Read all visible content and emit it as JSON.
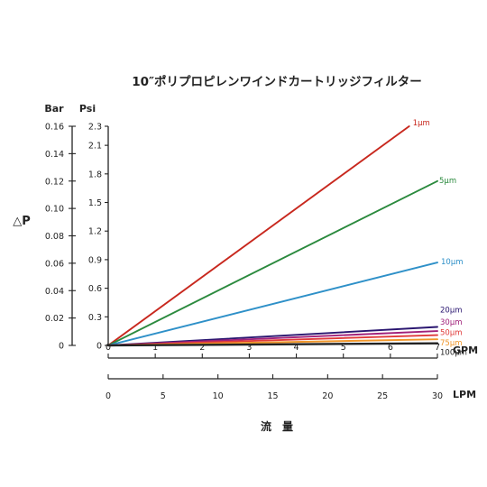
{
  "chart_data": {
    "type": "line",
    "title": "10″ポリプロピレンワインドカートリッジフィルター",
    "ylabel": "△P",
    "xlabel": "流　量",
    "y_axes": [
      {
        "unit": "Bar",
        "ticks": [
          0,
          0.02,
          0.04,
          0.06,
          0.08,
          0.1,
          0.12,
          0.14,
          0.16
        ],
        "labels": [
          "0",
          "0.02",
          "0.04",
          "0.06",
          "0.08",
          "0.10",
          "0.12",
          "0.14",
          "0.16"
        ],
        "ylim": [
          0,
          0.16
        ]
      },
      {
        "unit": "Psi",
        "ticks": [
          0,
          0.3,
          0.6,
          0.9,
          1.2,
          1.5,
          1.8,
          2.1,
          2.3
        ],
        "labels": [
          "0",
          "0.3",
          "0.6",
          "0.9",
          "1.2",
          "1.5",
          "1.8",
          "2.1",
          "2.3"
        ]
      }
    ],
    "x_axes": [
      {
        "unit": "GPM",
        "ticks": [
          0,
          1,
          2,
          3,
          4,
          5,
          6,
          7
        ],
        "labels": [
          "0",
          "1",
          "2",
          "3",
          "4",
          "5",
          "6",
          "7"
        ],
        "xlim": [
          0,
          7
        ]
      },
      {
        "unit": "LPM",
        "ticks": [
          0,
          5,
          10,
          15,
          20,
          25,
          30
        ],
        "labels": [
          "0",
          "5",
          "10",
          "15",
          "20",
          "25",
          "30"
        ],
        "xlim": [
          0,
          30
        ]
      }
    ],
    "series": [
      {
        "name": "1μm",
        "color": "#c8281e",
        "x": [
          0,
          6.4
        ],
        "y": [
          0,
          0.16
        ]
      },
      {
        "name": "5μm",
        "color": "#2b8a3e",
        "x": [
          0,
          7
        ],
        "y": [
          0,
          0.12
        ]
      },
      {
        "name": "10μm",
        "color": "#2e90c8",
        "x": [
          0,
          7
        ],
        "y": [
          0,
          0.0605
        ]
      },
      {
        "name": "20μm",
        "color": "#2a1670",
        "x": [
          0,
          7
        ],
        "y": [
          0,
          0.0135
        ]
      },
      {
        "name": "30μm",
        "color": "#a0207a",
        "x": [
          0,
          7
        ],
        "y": [
          0,
          0.0105
        ]
      },
      {
        "name": "50μm",
        "color": "#e03a3a",
        "x": [
          0,
          7
        ],
        "y": [
          0,
          0.0075
        ]
      },
      {
        "name": "75μm",
        "color": "#f0962a",
        "x": [
          0,
          7
        ],
        "y": [
          0,
          0.0045
        ]
      },
      {
        "name": "100μm",
        "color": "#222222",
        "x": [
          0,
          7
        ],
        "y": [
          0,
          0.0015
        ]
      }
    ]
  }
}
